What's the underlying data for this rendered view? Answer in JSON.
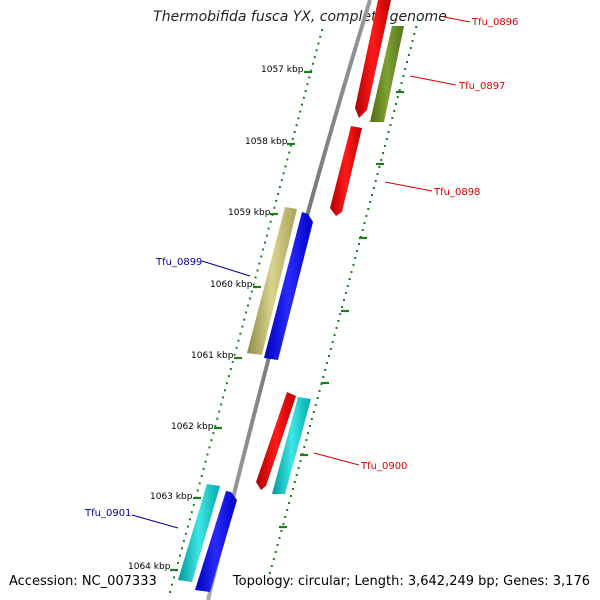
{
  "header": {
    "title": "Thermobifida fusca YX, complete genome"
  },
  "footer": {
    "accession": "Accession: NC_007333",
    "summary": "Topology: circular; Length: 3,642,249 bp; Genes: 3,176"
  },
  "ruler": [
    {
      "label": "1057 kbp"
    },
    {
      "label": "1058 kbp"
    },
    {
      "label": "1059 kbp"
    },
    {
      "label": "1060 kbp"
    },
    {
      "label": "1061 kbp"
    },
    {
      "label": "1062 kbp"
    },
    {
      "label": "1063 kbp"
    },
    {
      "label": "1064 kbp"
    }
  ],
  "genes": [
    {
      "label": "Tfu_0896",
      "color": "#d80000"
    },
    {
      "label": "Tfu_0897",
      "color": "#d80000"
    },
    {
      "label": "Tfu_0898",
      "color": "#d80000"
    },
    {
      "label": "Tfu_0899",
      "color": "#00009c"
    },
    {
      "label": "Tfu_0900",
      "color": "#d80000"
    },
    {
      "label": "Tfu_0901",
      "color": "#00009c"
    }
  ],
  "colors": {
    "red": "#ff0000",
    "olive": "#6b8e23",
    "khaki": "#bdb76b",
    "blue": "#0000ff",
    "cyan": "#00cccc",
    "ruler": "#1a7f1a",
    "backbone": "#808080"
  }
}
